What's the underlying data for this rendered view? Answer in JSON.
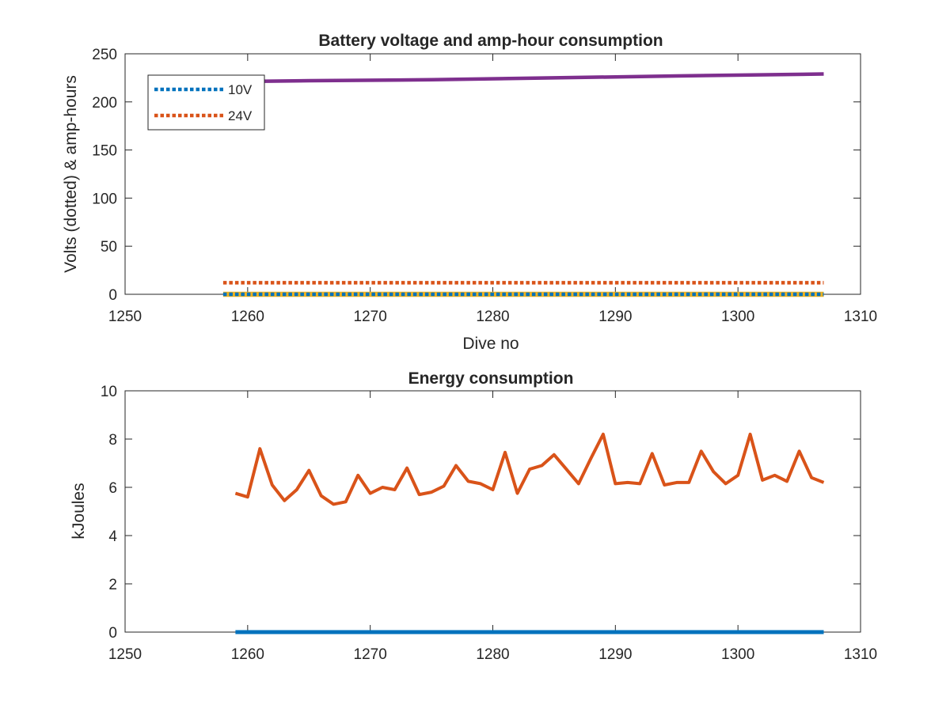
{
  "chart_data": [
    {
      "type": "line",
      "title": "Battery voltage and amp-hour consumption",
      "xlabel": "Dive no",
      "ylabel": "Volts (dotted) & amp-hours",
      "xlim": [
        1250,
        1310
      ],
      "ylim": [
        0,
        250
      ],
      "xticks": [
        1250,
        1260,
        1270,
        1280,
        1290,
        1300,
        1310
      ],
      "yticks": [
        0,
        50,
        100,
        150,
        200,
        250
      ],
      "legend_placement": "top-left",
      "grid": false,
      "series": [
        {
          "name": "10V",
          "style": "dotted",
          "color": "#0072BD",
          "x": [
            1258,
            1307
          ],
          "y": [
            0,
            0
          ]
        },
        {
          "name": "24V",
          "style": "dotted",
          "color": "#D95319",
          "x": [
            1258,
            1307
          ],
          "y": [
            12,
            12
          ]
        },
        {
          "name": "",
          "style": "solid",
          "color": "#EDB120",
          "x": [
            1258,
            1307
          ],
          "y": [
            0,
            0
          ]
        },
        {
          "name": "",
          "style": "solid",
          "color": "#7E2F8E",
          "x": [
            1258,
            1265,
            1275,
            1285,
            1295,
            1307
          ],
          "y": [
            221,
            222,
            223,
            225,
            227,
            229
          ]
        }
      ]
    },
    {
      "type": "line",
      "title": "Energy consumption",
      "xlabel": "",
      "ylabel": "kJoules",
      "xlim": [
        1250,
        1310
      ],
      "ylim": [
        0,
        10
      ],
      "xticks": [
        1250,
        1260,
        1270,
        1280,
        1290,
        1300,
        1310
      ],
      "yticks": [
        0,
        2,
        4,
        6,
        8,
        10
      ],
      "grid": false,
      "series": [
        {
          "name": "",
          "style": "solid",
          "color": "#0072BD",
          "x": [
            1259,
            1307
          ],
          "y": [
            0,
            0
          ]
        },
        {
          "name": "",
          "style": "solid",
          "color": "#D95319",
          "x": [
            1259,
            1260,
            1261,
            1262,
            1263,
            1264,
            1265,
            1266,
            1267,
            1268,
            1269,
            1270,
            1271,
            1272,
            1273,
            1274,
            1275,
            1276,
            1277,
            1278,
            1279,
            1280,
            1281,
            1282,
            1283,
            1284,
            1285,
            1286,
            1287,
            1288,
            1289,
            1290,
            1291,
            1292,
            1293,
            1294,
            1295,
            1296,
            1297,
            1298,
            1299,
            1300,
            1301,
            1302,
            1303,
            1304,
            1305,
            1306,
            1307
          ],
          "y": [
            5.75,
            5.6,
            7.6,
            6.1,
            5.45,
            5.9,
            6.7,
            5.65,
            5.3,
            5.4,
            6.5,
            5.75,
            6.0,
            5.9,
            6.8,
            5.7,
            5.8,
            6.05,
            6.9,
            6.25,
            6.15,
            5.9,
            7.45,
            5.75,
            6.75,
            6.9,
            7.35,
            6.75,
            6.15,
            7.2,
            8.2,
            6.15,
            6.2,
            6.15,
            7.4,
            6.1,
            6.2,
            6.2,
            7.5,
            6.65,
            6.15,
            6.5,
            8.2,
            6.3,
            6.5,
            6.25,
            7.5,
            6.4,
            6.2
          ]
        }
      ]
    }
  ],
  "colors": {
    "axis": "#262626",
    "background": "#ffffff"
  }
}
